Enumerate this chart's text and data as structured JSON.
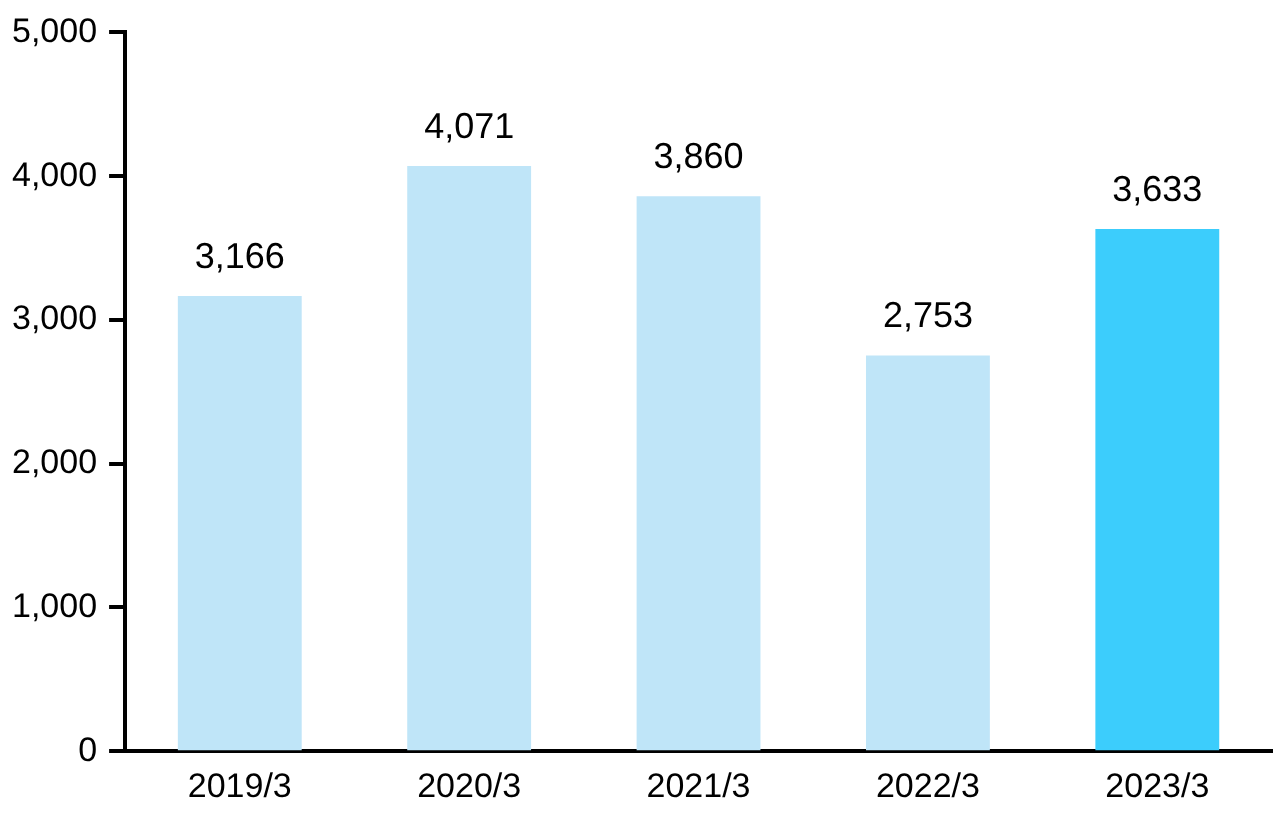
{
  "chart_data": {
    "type": "bar",
    "categories": [
      "2019/3",
      "2020/3",
      "2021/3",
      "2022/3",
      "2023/3"
    ],
    "values": [
      3166,
      4071,
      3860,
      2753,
      3633
    ],
    "colors": [
      "#bfe5f8",
      "#bfe5f8",
      "#bfe5f8",
      "#bfe5f8",
      "#3ccdfc"
    ],
    "value_labels": [
      "3,166",
      "4,071",
      "3,860",
      "2,753",
      "3,633"
    ],
    "ylim": [
      0,
      5000
    ],
    "yticks": [
      {
        "value": 0,
        "label": "0"
      },
      {
        "value": 1000,
        "label": "1,000"
      },
      {
        "value": 2000,
        "label": "2,000"
      },
      {
        "value": 3000,
        "label": "3,000"
      },
      {
        "value": 4000,
        "label": "4,000"
      },
      {
        "value": 5000,
        "label": "5,000"
      }
    ],
    "grid": false,
    "legend": false
  }
}
